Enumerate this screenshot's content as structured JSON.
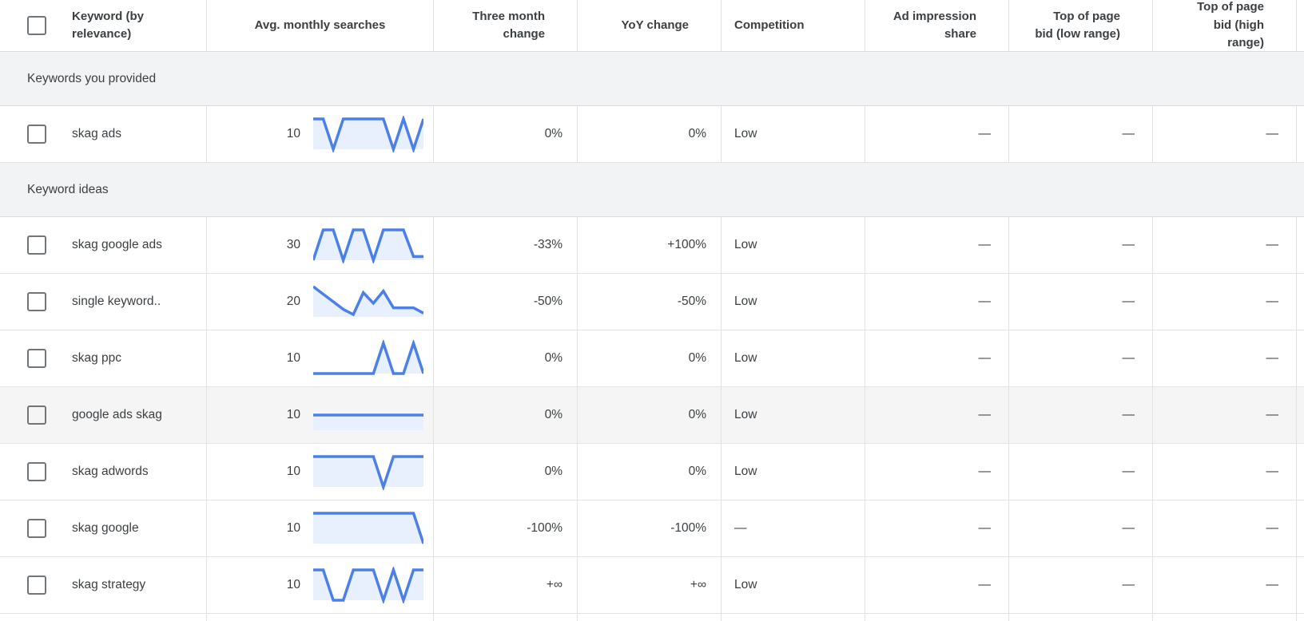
{
  "header": {
    "keyword": "Keyword (by relevance)",
    "avg_monthly_searches": "Avg. monthly searches",
    "three_month_change": "Three month change",
    "yoy_change": "YoY change",
    "competition": "Competition",
    "ad_impression_share": "Ad impression share",
    "top_of_page_bid_low": "Top of page bid (low range)",
    "top_of_page_bid_high": "Top of page bid (high range)"
  },
  "colors": {
    "sparkline_line": "#4b80e8",
    "sparkline_fill": "#e8effd",
    "section_bg": "#f1f3f4",
    "row_highlight_bg": "#f5f5f5",
    "border": "#e3e3e4",
    "text": "#3c4043"
  },
  "sections": [
    {
      "label": "Keywords you provided",
      "rows": [
        {
          "keyword": "skag ads",
          "avg_monthly_searches": "10",
          "trend": [
            1,
            1,
            0,
            1,
            1,
            1,
            1,
            1,
            0,
            1,
            0,
            1
          ],
          "three_month_change": "0%",
          "yoy_change": "0%",
          "competition": "Low",
          "ad_impression_share": "—",
          "top_of_page_bid_low": "—",
          "top_of_page_bid_high": "—",
          "highlighted": false
        }
      ]
    },
    {
      "label": "Keyword ideas",
      "rows": [
        {
          "keyword": "skag google ads",
          "avg_monthly_searches": "30",
          "trend": [
            0,
            1,
            1,
            0,
            1,
            1,
            0,
            1,
            1,
            1,
            0.12,
            0.12
          ],
          "three_month_change": "-33%",
          "yoy_change": "+100%",
          "competition": "Low",
          "ad_impression_share": "—",
          "top_of_page_bid_low": "—",
          "top_of_page_bid_high": "—",
          "highlighted": false
        },
        {
          "keyword": "single keyword..",
          "avg_monthly_searches": "20",
          "trend": [
            1,
            0.75,
            0.5,
            0.25,
            0.08,
            0.8,
            0.45,
            0.85,
            0.3,
            0.3,
            0.3,
            0.12
          ],
          "three_month_change": "-50%",
          "yoy_change": "-50%",
          "competition": "Low",
          "ad_impression_share": "—",
          "top_of_page_bid_low": "—",
          "top_of_page_bid_high": "—",
          "highlighted": false
        },
        {
          "keyword": "skag ppc",
          "avg_monthly_searches": "10",
          "trend": [
            0,
            0,
            0,
            0,
            0,
            0,
            0,
            1,
            0,
            0,
            1,
            0
          ],
          "three_month_change": "0%",
          "yoy_change": "0%",
          "competition": "Low",
          "ad_impression_share": "—",
          "top_of_page_bid_low": "—",
          "top_of_page_bid_high": "—",
          "highlighted": false
        },
        {
          "keyword": "google ads skag",
          "avg_monthly_searches": "10",
          "trend": [
            0.5,
            0.5,
            0.5,
            0.5,
            0.5,
            0.5,
            0.5,
            0.5,
            0.5,
            0.5,
            0.5,
            0.5
          ],
          "three_month_change": "0%",
          "yoy_change": "0%",
          "competition": "Low",
          "ad_impression_share": "—",
          "top_of_page_bid_low": "—",
          "top_of_page_bid_high": "—",
          "highlighted": true
        },
        {
          "keyword": "skag adwords",
          "avg_monthly_searches": "10",
          "trend": [
            1,
            1,
            1,
            1,
            1,
            1,
            1,
            0,
            1,
            1,
            1,
            1
          ],
          "three_month_change": "0%",
          "yoy_change": "0%",
          "competition": "Low",
          "ad_impression_share": "—",
          "top_of_page_bid_low": "—",
          "top_of_page_bid_high": "—",
          "highlighted": false
        },
        {
          "keyword": "skag google",
          "avg_monthly_searches": "10",
          "trend": [
            1,
            1,
            1,
            1,
            1,
            1,
            1,
            1,
            1,
            1,
            1,
            0
          ],
          "three_month_change": "-100%",
          "yoy_change": "-100%",
          "competition": "—",
          "ad_impression_share": "—",
          "top_of_page_bid_low": "—",
          "top_of_page_bid_high": "—",
          "highlighted": false
        },
        {
          "keyword": "skag strategy",
          "avg_monthly_searches": "10",
          "trend": [
            1,
            1,
            0,
            0,
            1,
            1,
            1,
            0,
            1,
            0,
            1,
            1
          ],
          "three_month_change": "+∞",
          "yoy_change": "+∞",
          "competition": "Low",
          "ad_impression_share": "—",
          "top_of_page_bid_low": "—",
          "top_of_page_bid_high": "—",
          "highlighted": false
        }
      ]
    }
  ]
}
